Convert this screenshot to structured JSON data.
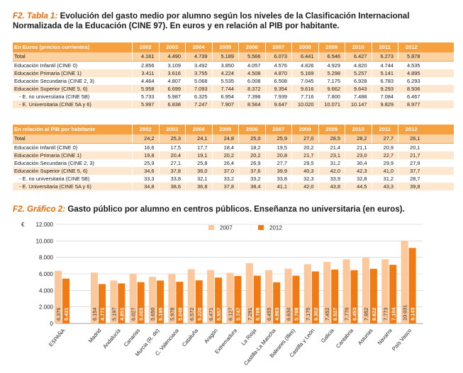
{
  "table1": {
    "label": "F2. Tabla 1:",
    "title_line1": "Evolución del gasto medio por alumno según los niveles de la Clasificación Internacional",
    "title_line2": "Normalizada de la Educación (CINE 97). En euros y en relación al PIB por habitante.",
    "header_label": "En Euros (precios corrientes)",
    "years": [
      "2002",
      "2003",
      "2004",
      "2005",
      "2006",
      "2007",
      "2008",
      "2009",
      "2010",
      "2011",
      "2012"
    ],
    "rows": [
      {
        "label": "Total",
        "values": [
          "4.161",
          "4.490",
          "4.739",
          "5.189",
          "5.566",
          "6.073",
          "6.441",
          "6.546",
          "6.427",
          "6.273",
          "5.878"
        ]
      },
      {
        "label": "Educación Infantil (CINE 0)",
        "values": [
          "2.856",
          "3.109",
          "3.492",
          "3.850",
          "4.057",
          "4.576",
          "4.826",
          "4.929",
          "4.820",
          "4.744",
          "4.535"
        ]
      },
      {
        "label": "Educación Primaria (CINE 1)",
        "values": [
          "3.411",
          "3.616",
          "3.755",
          "4.224",
          "4.508",
          "4.870",
          "5.169",
          "5.298",
          "5.257",
          "5.141",
          "4.895"
        ]
      },
      {
        "label": "Educación Secundaria (CINE 2, 3)",
        "values": [
          "4.464",
          "4.807",
          "5.068",
          "5.535",
          "6.008",
          "6.508",
          "7.045",
          "7.175",
          "6.928",
          "6.783",
          "6.293"
        ]
      },
      {
        "label": "Educación Superior (CINE 5, 6)",
        "values": [
          "5.958",
          "6.699",
          "7.093",
          "7.744",
          "8.372",
          "9.354",
          "9.616",
          "9.662",
          "9.643",
          "9.293",
          "8.506"
        ]
      },
      {
        "label": "- E. no universitaria (CINE 5B)",
        "values": [
          "5.733",
          "5.987",
          "6.325",
          "6.954",
          "7.398",
          "7.939",
          "7.716",
          "7.800",
          "7.488",
          "7.084",
          "6.467"
        ]
      },
      {
        "label": "- E. Universitaria (CINE 5A y 6)",
        "values": [
          "5.997",
          "6.838",
          "7.247",
          "7.907",
          "8.564",
          "9.647",
          "10.020",
          "10.071",
          "10.147",
          "9.829",
          "8.977"
        ]
      }
    ]
  },
  "table2": {
    "header_label": "En relación al PIB por habitante",
    "years": [
      "2002",
      "2003",
      "2004",
      "2005",
      "2006",
      "2007",
      "2008",
      "2009",
      "2010",
      "2011",
      "2012"
    ],
    "rows": [
      {
        "label": "Total",
        "values": [
          "24,2",
          "25,3",
          "24,1",
          "24,8",
          "25,0",
          "25,9",
          "27,0",
          "28,5",
          "28,2",
          "27,7",
          "26,1"
        ]
      },
      {
        "label": "Educación Infantil (CINE 0)",
        "values": [
          "16,6",
          "17,5",
          "17,7",
          "18,4",
          "18,2",
          "19,5",
          "20,2",
          "21,4",
          "21,1",
          "20,9",
          "20,1"
        ]
      },
      {
        "label": "Educación Primaria (CINE 1)",
        "values": [
          "19,8",
          "20,4",
          "19,1",
          "20,2",
          "20,2",
          "20,8",
          "21,7",
          "23,1",
          "23,0",
          "22,7",
          "21,7"
        ]
      },
      {
        "label": "Educación Secundaria (CINE 2, 3)",
        "values": [
          "25,9",
          "27,1",
          "25,8",
          "26,4",
          "26,9",
          "27,7",
          "29,5",
          "31,2",
          "30,4",
          "29,9",
          "27,9"
        ]
      },
      {
        "label": "Educación Superior (CINE 5, 6)",
        "values": [
          "34,6",
          "37,8",
          "36,0",
          "37,0",
          "37,6",
          "39,9",
          "40,3",
          "42,0",
          "42,3",
          "41,0",
          "37,7"
        ]
      },
      {
        "label": "- E. no universitaria (CINE 5B)",
        "values": [
          "33,3",
          "33,8",
          "32,1",
          "33,2",
          "33,2",
          "33,8",
          "32,3",
          "33,9",
          "32,8",
          "31,2",
          "28,7"
        ]
      },
      {
        "label": "- E. Universitaria (CINE 5A y 6)",
        "values": [
          "34,8",
          "38,6",
          "36,8",
          "37,8",
          "38,4",
          "41,1",
          "42,0",
          "43,8",
          "44,5",
          "43,3",
          "39,8"
        ]
      }
    ]
  },
  "chart_title": {
    "label": "F2. Gráfico 2:",
    "text": "Gasto público por alumno en centros públicos. Enseñanza no universitaria (en euros)."
  },
  "chart_data": {
    "type": "bar",
    "unit_label": "€",
    "ylim": [
      0,
      12000
    ],
    "yticks": [
      "0",
      "2.000",
      "4.000",
      "6.000",
      "8.000",
      "10.000",
      "12.000"
    ],
    "categories": [
      "ESPAÑA",
      "Madrid",
      "Andalucía",
      "Canarias",
      "Murcia (R. de)",
      "C. Valenciana",
      "Cataluña",
      "Aragón",
      "Extremadura",
      "La Rioja",
      "Castilla-La Mancha",
      "Baleares (Illes)",
      "Castilla y León",
      "Galicia",
      "Cantabria",
      "Asturias",
      "Navarra",
      "País Vasco"
    ],
    "series": [
      {
        "name": "2007",
        "color": "#fcc79a",
        "values": [
          6376,
          6154,
          5197,
          6027,
          5650,
          5978,
          6572,
          6471,
          6127,
          7291,
          6455,
          6634,
          7175,
          7452,
          7770,
          7952,
          7773,
          10031
        ],
        "labels": [
          "6.376",
          "6.154",
          "5.197",
          "6.027",
          "5.650",
          "5.978",
          "6.572",
          "6.471",
          "6.127",
          "7.291",
          "6.455",
          "6.634",
          "7.175",
          "7.452",
          "7.770",
          "7.952",
          "7.773",
          "10.031"
        ]
      },
      {
        "name": "2012",
        "color": "#f07b14",
        "values": [
          5431,
          4771,
          4851,
          5005,
          5195,
          5048,
          5220,
          5557,
          5747,
          5789,
          4983,
          5788,
          6302,
          6527,
          6453,
          6622,
          7104,
          9143
        ],
        "labels": [
          "5.431",
          "4.771",
          "4.851",
          "5.005",
          "5.195",
          "5.048",
          "5.220",
          "5.557",
          "5.747",
          "5.789",
          "4.983",
          "5.788",
          "6.302",
          "6.527",
          "6.453",
          "6.622",
          "7.104",
          "9.143"
        ]
      }
    ]
  }
}
